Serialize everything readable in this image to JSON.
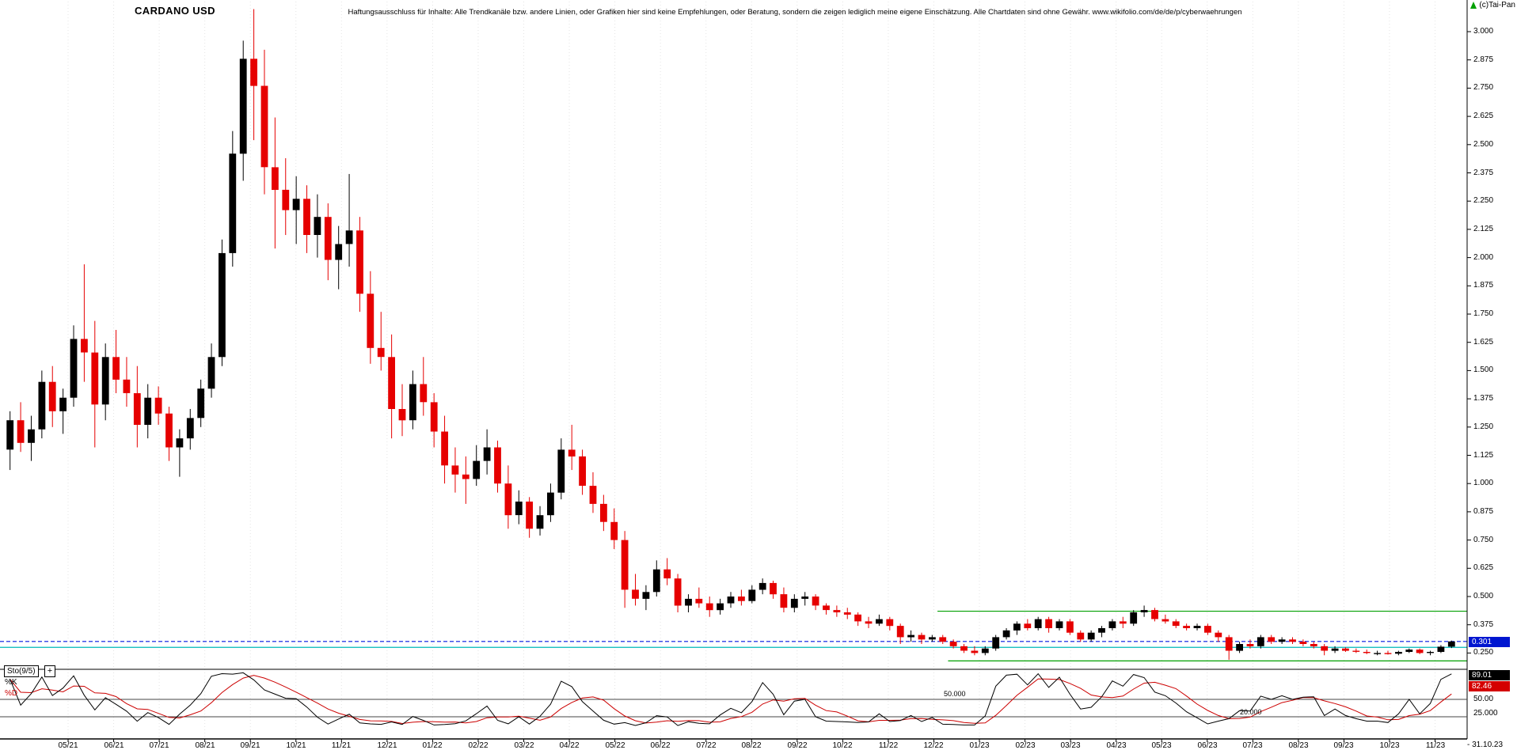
{
  "header": {
    "title": "CARDANO USD",
    "disclaimer": "Haftungsausschluss für Inhalte: Alle Trendkanäle bzw. andere Linien, oder Grafiken hier sind keine Empfehlungen, oder Beratung, sondern die zeigen lediglich meine eigene Einschätzung. Alle Chartdaten sind ohne Gewähr.  www.wikifolio.com/de/de/p/cyberwaehrungen",
    "copyright": "(c)Tai-Pan"
  },
  "price_axis": {
    "ticks": [
      "3.000",
      "2.875",
      "2.750",
      "2.625",
      "2.500",
      "2.375",
      "2.250",
      "2.125",
      "2.000",
      "1.875",
      "1.750",
      "1.625",
      "1.500",
      "1.375",
      "1.250",
      "1.125",
      "1.000",
      "0.875",
      "0.750",
      "0.625",
      "0.500",
      "0.375",
      "0.250"
    ],
    "current_price": {
      "label": "0.301",
      "color": "#0016d0"
    }
  },
  "x_axis": {
    "ticks": [
      "05/21",
      "06/21",
      "07/21",
      "08/21",
      "09/21",
      "10/21",
      "11/21",
      "12/21",
      "01/22",
      "02/22",
      "03/22",
      "04/22",
      "05/22",
      "06/22",
      "07/22",
      "08/22",
      "09/22",
      "10/22",
      "11/22",
      "12/22",
      "01/23",
      "02/23",
      "03/23",
      "04/23",
      "05/23",
      "06/23",
      "07/23",
      "08/23",
      "09/23",
      "10/23",
      "11/23"
    ],
    "end_dash": "-",
    "end_date": "31.10.23"
  },
  "indicator_panel": {
    "name": "Sto(9/5)",
    "expand_icon": "+",
    "k_label": "%K",
    "d_label": "%D",
    "k_value": "89.01",
    "d_value": "82.46",
    "level_50_axis": "50.00",
    "level_25_axis": "25.000",
    "level_50_inline": "50.000",
    "level_20_inline": "20.000"
  },
  "chart_data": {
    "type": "candlestick",
    "title": "CARDANO USD",
    "timeframe": "weekly",
    "last_date": "31.10.23",
    "last_close": 0.301,
    "up_color": "#000000",
    "down_color": "#e60000",
    "y_axis": {
      "max": 3.0,
      "min": 0.25,
      "step": 0.125
    },
    "x_tick_labels": [
      "05/21",
      "06/21",
      "07/21",
      "08/21",
      "09/21",
      "10/21",
      "11/21",
      "12/21",
      "01/22",
      "02/22",
      "03/22",
      "04/22",
      "05/22",
      "06/22",
      "07/22",
      "08/22",
      "09/22",
      "10/22",
      "11/22",
      "12/22",
      "01/23",
      "02/23",
      "03/23",
      "04/23",
      "05/23",
      "06/23",
      "07/23",
      "08/23",
      "09/23",
      "10/23",
      "11/23"
    ],
    "ohlc_format": [
      "open",
      "high",
      "low",
      "close"
    ],
    "ohlc": [
      [
        1.15,
        1.32,
        1.06,
        1.28
      ],
      [
        1.28,
        1.36,
        1.14,
        1.18
      ],
      [
        1.18,
        1.3,
        1.1,
        1.24
      ],
      [
        1.24,
        1.5,
        1.2,
        1.45
      ],
      [
        1.45,
        1.52,
        1.25,
        1.32
      ],
      [
        1.32,
        1.42,
        1.22,
        1.38
      ],
      [
        1.38,
        1.7,
        1.34,
        1.64
      ],
      [
        1.64,
        1.97,
        1.45,
        1.58
      ],
      [
        1.58,
        1.72,
        1.16,
        1.35
      ],
      [
        1.35,
        1.62,
        1.28,
        1.56
      ],
      [
        1.56,
        1.68,
        1.4,
        1.46
      ],
      [
        1.46,
        1.56,
        1.34,
        1.4
      ],
      [
        1.4,
        1.52,
        1.16,
        1.26
      ],
      [
        1.26,
        1.44,
        1.2,
        1.38
      ],
      [
        1.38,
        1.43,
        1.26,
        1.31
      ],
      [
        1.31,
        1.34,
        1.1,
        1.16
      ],
      [
        1.16,
        1.24,
        1.03,
        1.2
      ],
      [
        1.2,
        1.33,
        1.15,
        1.29
      ],
      [
        1.29,
        1.46,
        1.25,
        1.42
      ],
      [
        1.42,
        1.62,
        1.38,
        1.56
      ],
      [
        1.56,
        2.08,
        1.52,
        2.02
      ],
      [
        2.02,
        2.56,
        1.96,
        2.46
      ],
      [
        2.46,
        2.96,
        2.34,
        2.88
      ],
      [
        2.88,
        3.1,
        2.52,
        2.76
      ],
      [
        2.76,
        2.92,
        2.28,
        2.4
      ],
      [
        2.4,
        2.62,
        2.04,
        2.3
      ],
      [
        2.3,
        2.44,
        2.1,
        2.21
      ],
      [
        2.21,
        2.36,
        2.06,
        2.26
      ],
      [
        2.26,
        2.32,
        2.02,
        2.1
      ],
      [
        2.1,
        2.28,
        2.0,
        2.18
      ],
      [
        2.18,
        2.24,
        1.9,
        1.99
      ],
      [
        1.99,
        2.14,
        1.86,
        2.06
      ],
      [
        2.06,
        2.37,
        1.96,
        2.12
      ],
      [
        2.12,
        2.18,
        1.76,
        1.84
      ],
      [
        1.84,
        1.94,
        1.53,
        1.6
      ],
      [
        1.6,
        1.76,
        1.5,
        1.56
      ],
      [
        1.56,
        1.66,
        1.2,
        1.33
      ],
      [
        1.33,
        1.44,
        1.21,
        1.28
      ],
      [
        1.28,
        1.5,
        1.24,
        1.44
      ],
      [
        1.44,
        1.56,
        1.3,
        1.36
      ],
      [
        1.36,
        1.4,
        1.16,
        1.23
      ],
      [
        1.23,
        1.3,
        1.0,
        1.08
      ],
      [
        1.08,
        1.16,
        0.96,
        1.04
      ],
      [
        1.04,
        1.12,
        0.91,
        1.02
      ],
      [
        1.02,
        1.17,
        0.99,
        1.1
      ],
      [
        1.1,
        1.24,
        1.04,
        1.16
      ],
      [
        1.16,
        1.19,
        0.96,
        1.0
      ],
      [
        1.0,
        1.08,
        0.8,
        0.86
      ],
      [
        0.86,
        0.97,
        0.82,
        0.92
      ],
      [
        0.92,
        0.94,
        0.76,
        0.8
      ],
      [
        0.8,
        0.9,
        0.77,
        0.86
      ],
      [
        0.86,
        1.0,
        0.83,
        0.96
      ],
      [
        0.96,
        1.2,
        0.93,
        1.15
      ],
      [
        1.15,
        1.26,
        1.06,
        1.12
      ],
      [
        1.12,
        1.15,
        0.95,
        0.99
      ],
      [
        0.99,
        1.05,
        0.87,
        0.91
      ],
      [
        0.91,
        0.95,
        0.79,
        0.83
      ],
      [
        0.83,
        0.89,
        0.71,
        0.75
      ],
      [
        0.75,
        0.79,
        0.45,
        0.53
      ],
      [
        0.53,
        0.6,
        0.46,
        0.49
      ],
      [
        0.49,
        0.55,
        0.44,
        0.52
      ],
      [
        0.52,
        0.66,
        0.5,
        0.62
      ],
      [
        0.62,
        0.67,
        0.55,
        0.58
      ],
      [
        0.58,
        0.6,
        0.43,
        0.46
      ],
      [
        0.46,
        0.51,
        0.43,
        0.49
      ],
      [
        0.49,
        0.54,
        0.45,
        0.47
      ],
      [
        0.47,
        0.5,
        0.41,
        0.44
      ],
      [
        0.44,
        0.49,
        0.42,
        0.47
      ],
      [
        0.47,
        0.52,
        0.45,
        0.5
      ],
      [
        0.5,
        0.53,
        0.46,
        0.48
      ],
      [
        0.48,
        0.55,
        0.47,
        0.53
      ],
      [
        0.53,
        0.58,
        0.51,
        0.56
      ],
      [
        0.56,
        0.57,
        0.49,
        0.51
      ],
      [
        0.51,
        0.54,
        0.43,
        0.45
      ],
      [
        0.45,
        0.51,
        0.43,
        0.49
      ],
      [
        0.49,
        0.52,
        0.46,
        0.5
      ],
      [
        0.5,
        0.51,
        0.44,
        0.46
      ],
      [
        0.46,
        0.47,
        0.42,
        0.44
      ],
      [
        0.44,
        0.46,
        0.41,
        0.43
      ],
      [
        0.43,
        0.45,
        0.4,
        0.42
      ],
      [
        0.42,
        0.43,
        0.37,
        0.39
      ],
      [
        0.39,
        0.41,
        0.36,
        0.38
      ],
      [
        0.38,
        0.42,
        0.37,
        0.4
      ],
      [
        0.4,
        0.41,
        0.35,
        0.37
      ],
      [
        0.37,
        0.38,
        0.29,
        0.32
      ],
      [
        0.32,
        0.35,
        0.3,
        0.33
      ],
      [
        0.33,
        0.34,
        0.29,
        0.31
      ],
      [
        0.31,
        0.33,
        0.3,
        0.32
      ],
      [
        0.32,
        0.33,
        0.29,
        0.3
      ],
      [
        0.3,
        0.31,
        0.27,
        0.28
      ],
      [
        0.28,
        0.29,
        0.25,
        0.26
      ],
      [
        0.26,
        0.28,
        0.24,
        0.25
      ],
      [
        0.25,
        0.28,
        0.24,
        0.27
      ],
      [
        0.27,
        0.33,
        0.26,
        0.32
      ],
      [
        0.32,
        0.36,
        0.31,
        0.35
      ],
      [
        0.35,
        0.39,
        0.33,
        0.38
      ],
      [
        0.38,
        0.4,
        0.35,
        0.36
      ],
      [
        0.36,
        0.41,
        0.35,
        0.4
      ],
      [
        0.4,
        0.41,
        0.34,
        0.36
      ],
      [
        0.36,
        0.4,
        0.35,
        0.39
      ],
      [
        0.39,
        0.4,
        0.33,
        0.34
      ],
      [
        0.34,
        0.35,
        0.3,
        0.31
      ],
      [
        0.31,
        0.35,
        0.3,
        0.34
      ],
      [
        0.34,
        0.37,
        0.32,
        0.36
      ],
      [
        0.36,
        0.4,
        0.35,
        0.39
      ],
      [
        0.39,
        0.41,
        0.36,
        0.38
      ],
      [
        0.38,
        0.44,
        0.37,
        0.43
      ],
      [
        0.43,
        0.46,
        0.41,
        0.44
      ],
      [
        0.44,
        0.45,
        0.39,
        0.4
      ],
      [
        0.4,
        0.42,
        0.38,
        0.39
      ],
      [
        0.39,
        0.4,
        0.36,
        0.37
      ],
      [
        0.37,
        0.38,
        0.35,
        0.36
      ],
      [
        0.36,
        0.38,
        0.35,
        0.37
      ],
      [
        0.37,
        0.38,
        0.33,
        0.34
      ],
      [
        0.34,
        0.35,
        0.3,
        0.32
      ],
      [
        0.32,
        0.33,
        0.22,
        0.26
      ],
      [
        0.26,
        0.3,
        0.25,
        0.29
      ],
      [
        0.29,
        0.31,
        0.27,
        0.28
      ],
      [
        0.28,
        0.33,
        0.27,
        0.32
      ],
      [
        0.32,
        0.33,
        0.29,
        0.3
      ],
      [
        0.3,
        0.32,
        0.29,
        0.31
      ],
      [
        0.31,
        0.32,
        0.29,
        0.3
      ],
      [
        0.3,
        0.31,
        0.28,
        0.29
      ],
      [
        0.29,
        0.3,
        0.27,
        0.28
      ],
      [
        0.28,
        0.29,
        0.24,
        0.26
      ],
      [
        0.26,
        0.28,
        0.25,
        0.27
      ],
      [
        0.27,
        0.275,
        0.255,
        0.26
      ],
      [
        0.26,
        0.27,
        0.25,
        0.255
      ],
      [
        0.255,
        0.265,
        0.245,
        0.25
      ],
      [
        0.25,
        0.26,
        0.24,
        0.25
      ],
      [
        0.25,
        0.26,
        0.243,
        0.247
      ],
      [
        0.247,
        0.26,
        0.24,
        0.255
      ],
      [
        0.255,
        0.27,
        0.25,
        0.265
      ],
      [
        0.265,
        0.27,
        0.245,
        0.25
      ],
      [
        0.25,
        0.26,
        0.24,
        0.255
      ],
      [
        0.255,
        0.285,
        0.25,
        0.278
      ],
      [
        0.278,
        0.305,
        0.272,
        0.301
      ]
    ],
    "overlays": [
      {
        "name": "current-price-line",
        "value": 0.301,
        "color": "#0016e0",
        "style": "dashed",
        "span": "full"
      },
      {
        "name": "horizontal-line-cyan",
        "value": 0.275,
        "color": "#00b8b8",
        "style": "solid",
        "span": "full"
      },
      {
        "name": "resistance-line-green",
        "value": 0.435,
        "color": "#00a000",
        "style": "solid",
        "from_week": 88
      },
      {
        "name": "support-line-green",
        "value": 0.215,
        "color": "#00a000",
        "style": "solid",
        "from_week": 89
      }
    ],
    "indicator": {
      "name": "Sto(9/5)",
      "type": "stochastic",
      "k_period": 9,
      "d_period": 5,
      "k_last": 89.01,
      "d_last": 82.46,
      "levels": [
        50,
        20
      ],
      "k_color": "#000000",
      "d_color": "#cc0000"
    }
  }
}
